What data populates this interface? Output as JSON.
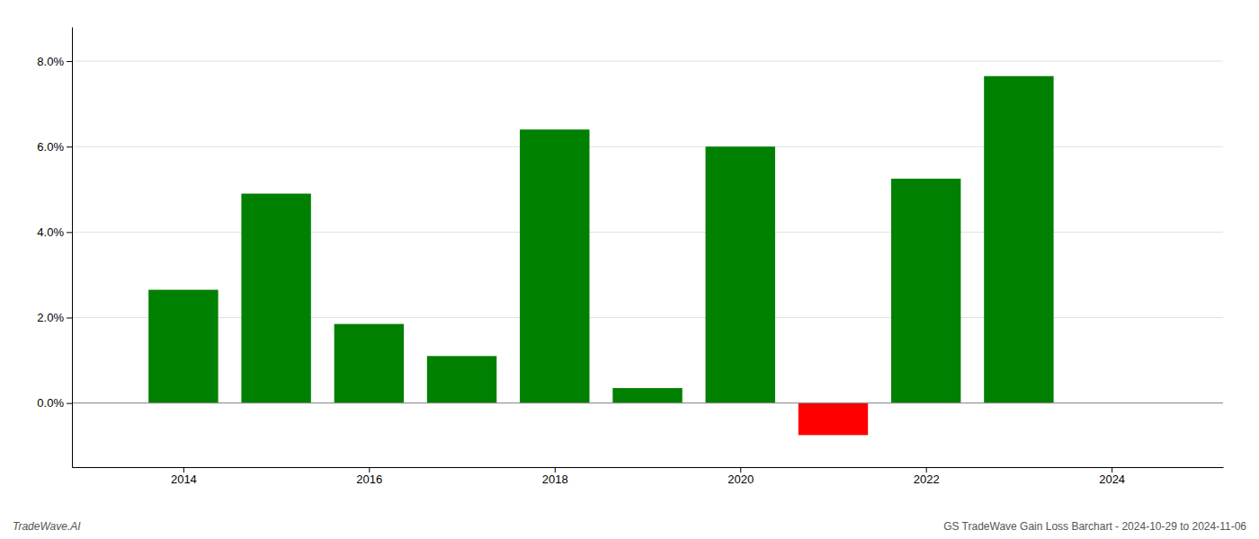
{
  "chart_data": {
    "type": "bar",
    "x": [
      2014,
      2015,
      2016,
      2017,
      2018,
      2019,
      2020,
      2021,
      2022,
      2023
    ],
    "values": [
      0.0265,
      0.049,
      0.0185,
      0.011,
      0.064,
      0.0035,
      0.06,
      -0.0075,
      0.0525,
      0.0765
    ],
    "colors": [
      "#008000",
      "#008000",
      "#008000",
      "#008000",
      "#008000",
      "#008000",
      "#008000",
      "#ff0000",
      "#008000",
      "#008000"
    ],
    "xlim": [
      2012.8,
      2025.2
    ],
    "xticks": [
      2014,
      2016,
      2018,
      2020,
      2022,
      2024
    ],
    "ylim": [
      -0.015,
      0.088
    ],
    "yticks": [
      {
        "value": 0.0,
        "label": "0.0%"
      },
      {
        "value": 0.02,
        "label": "2.0%"
      },
      {
        "value": 0.04,
        "label": "4.0%"
      },
      {
        "value": 0.06,
        "label": "6.0%"
      },
      {
        "value": 0.08,
        "label": "8.0%"
      }
    ],
    "grid": true,
    "annotations": [
      "TradeWave.AI",
      "GS TradeWave Gain Loss Barchart - 2024-10-29 to 2024-11-06"
    ]
  }
}
